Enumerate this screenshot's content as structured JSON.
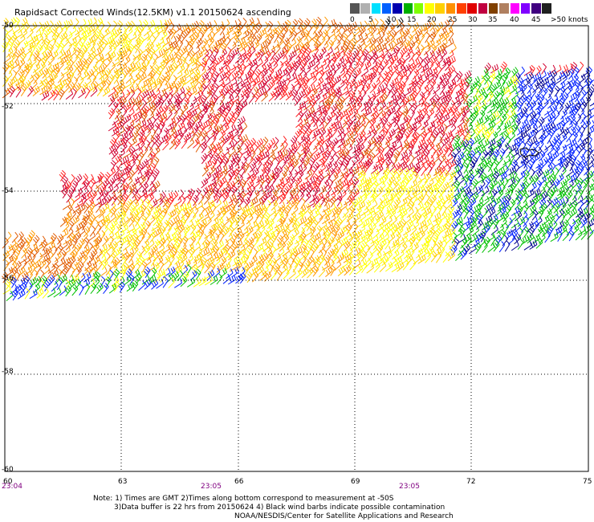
{
  "title": "Rapidsact Corrected Winds(12.5KM) v1.1 20150624 ascending",
  "speed_scale": {
    "labels": [
      "0",
      "5",
      "10",
      "15",
      "20",
      "25",
      "30",
      "35",
      "40",
      "45",
      ">50 knots"
    ],
    "colors": [
      "#555555",
      "#b0b0b0",
      "#00e0ff",
      "#0060ff",
      "#0000b0",
      "#00b000",
      "#80ff00",
      "#ffff00",
      "#ffd000",
      "#ff9000",
      "#ff4000",
      "#e00000",
      "#c00040",
      "#804000",
      "#b08060",
      "#ff00ff",
      "#8000ff",
      "#400080",
      "#202020"
    ]
  },
  "latitude_labels": [
    "-50",
    "-52",
    "-54",
    "-56",
    "-58",
    "-60"
  ],
  "longitude_labels": [
    "60",
    "63",
    "66",
    "69",
    "72",
    "75"
  ],
  "time_labels": [
    "23:04",
    "23:05",
    "23:05"
  ],
  "notes": [
    "Note: 1) Times are GMT 2)Times along bottom correspond to measurement at -50S",
    "3)Data buffer is 22 hrs from 20150624 4) Black wind barbs indicate possible contamination",
    "NOAA/NESDIS/Center for Satellite Applications and Research"
  ],
  "wind_palette": {
    "yellow": "#ffff00",
    "gold": "#ffd200",
    "orange": "#ff9900",
    "dark_orange": "#e05a00",
    "red": "#ff2020",
    "crimson": "#d00030",
    "green": "#00c000",
    "blue": "#0020ff",
    "navy": "#000090",
    "black": "#000000"
  }
}
